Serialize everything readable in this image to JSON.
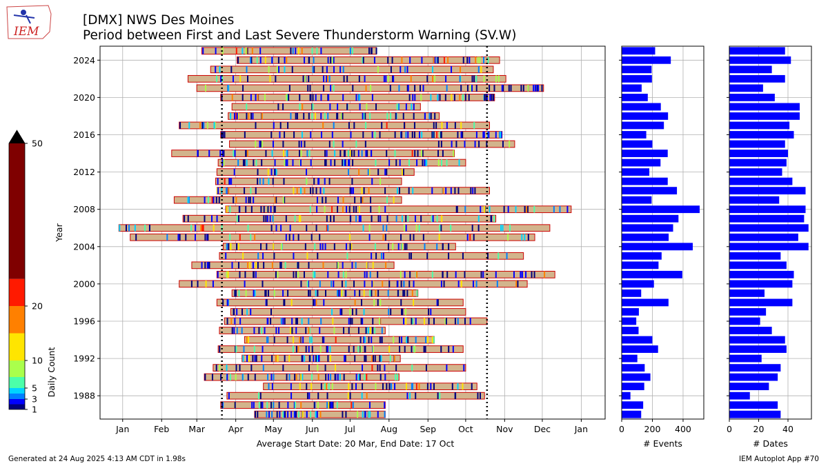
{
  "header": {
    "logo_text": "IEM",
    "title_line1": "[DMX] NWS Des Moines",
    "title_line2": "Period between First and Last Severe Thunderstorm Warning (SV.W)"
  },
  "footer": {
    "generated": "Generated at 24 Aug 2025 4:13 AM CDT in 1.98s",
    "app": "IEM Autoplot App #70"
  },
  "colorbar": {
    "label": "Daily Count",
    "ticks": [
      1,
      3,
      5,
      10,
      20,
      50
    ],
    "bins": [
      {
        "from": 1,
        "to": 2,
        "color": "#00007f"
      },
      {
        "from": 2,
        "to": 3,
        "color": "#0000ff"
      },
      {
        "from": 3,
        "to": 4,
        "color": "#0080ff"
      },
      {
        "from": 4,
        "to": 5,
        "color": "#00d4ff"
      },
      {
        "from": 5,
        "to": 7,
        "color": "#4cffaa"
      },
      {
        "from": 7,
        "to": 10,
        "color": "#aaff4c"
      },
      {
        "from": 10,
        "to": 15,
        "color": "#ffe500"
      },
      {
        "from": 15,
        "to": 20,
        "color": "#ff8000"
      },
      {
        "from": 20,
        "to": 25,
        "color": "#ff1a00"
      },
      {
        "from": 25,
        "to": 50,
        "color": "#7f0000"
      }
    ],
    "extend_color": "#000000"
  },
  "chart_data": [
    {
      "type": "timeline",
      "ylabel": "Year",
      "xlabel": "Average Start Date: 20 Mar, End Date: 17 Oct",
      "x_tick_labels": [
        "Jan",
        "Feb",
        "Mar",
        "Apr",
        "May",
        "Jun",
        "Jul",
        "Aug",
        "Sep",
        "Oct",
        "Nov",
        "Dec",
        "Jan"
      ],
      "y_ticks": [
        1988,
        1992,
        1996,
        2000,
        2004,
        2008,
        2012,
        2016,
        2020,
        2024
      ],
      "avg_start_doy": 79,
      "avg_end_doy": 290,
      "bar_color": "#d2b48c",
      "bar_edge": "#cc0000",
      "grid": true,
      "periods": [
        {
          "year": 1986,
          "start_doy": 105,
          "end_doy": 209
        },
        {
          "year": 1987,
          "start_doy": 78,
          "end_doy": 209
        },
        {
          "year": 1988,
          "start_doy": 83,
          "end_doy": 288
        },
        {
          "year": 1989,
          "start_doy": 112,
          "end_doy": 282
        },
        {
          "year": 1990,
          "start_doy": 65,
          "end_doy": 220
        },
        {
          "year": 1991,
          "start_doy": 72,
          "end_doy": 273
        },
        {
          "year": 1992,
          "start_doy": 95,
          "end_doy": 221
        },
        {
          "year": 1993,
          "start_doy": 76,
          "end_doy": 271
        },
        {
          "year": 1994,
          "start_doy": 97,
          "end_doy": 248
        },
        {
          "year": 1995,
          "start_doy": 77,
          "end_doy": 209
        },
        {
          "year": 1996,
          "start_doy": 81,
          "end_doy": 290
        },
        {
          "year": 1997,
          "start_doy": 86,
          "end_doy": 273
        },
        {
          "year": 1998,
          "start_doy": 75,
          "end_doy": 271
        },
        {
          "year": 1999,
          "start_doy": 87,
          "end_doy": 235
        },
        {
          "year": 2000,
          "start_doy": 45,
          "end_doy": 322
        },
        {
          "year": 2001,
          "start_doy": 75,
          "end_doy": 344
        },
        {
          "year": 2002,
          "start_doy": 55,
          "end_doy": 216
        },
        {
          "year": 2003,
          "start_doy": 77,
          "end_doy": 319
        },
        {
          "year": 2004,
          "start_doy": 80,
          "end_doy": 265
        },
        {
          "year": 2005,
          "start_doy": 6,
          "end_doy": 328
        },
        {
          "year": 2006,
          "start_doy": -3,
          "end_doy": 340
        },
        {
          "year": 2007,
          "start_doy": 48,
          "end_doy": 297
        },
        {
          "year": 2008,
          "start_doy": 82,
          "end_doy": 357
        },
        {
          "year": 2009,
          "start_doy": 41,
          "end_doy": 222
        },
        {
          "year": 2010,
          "start_doy": 75,
          "end_doy": 292
        },
        {
          "year": 2011,
          "start_doy": 74,
          "end_doy": 222
        },
        {
          "year": 2012,
          "start_doy": 75,
          "end_doy": 232
        },
        {
          "year": 2013,
          "start_doy": 76,
          "end_doy": 273
        },
        {
          "year": 2014,
          "start_doy": 39,
          "end_doy": 264
        },
        {
          "year": 2015,
          "start_doy": 85,
          "end_doy": 312
        },
        {
          "year": 2016,
          "start_doy": 78,
          "end_doy": 302
        },
        {
          "year": 2017,
          "start_doy": 45,
          "end_doy": 292
        },
        {
          "year": 2018,
          "start_doy": 84,
          "end_doy": 252
        },
        {
          "year": 2019,
          "start_doy": 87,
          "end_doy": 237
        },
        {
          "year": 2020,
          "start_doy": 78,
          "end_doy": 296
        },
        {
          "year": 2021,
          "start_doy": 59,
          "end_doy": 335
        },
        {
          "year": 2022,
          "start_doy": 52,
          "end_doy": 305
        },
        {
          "year": 2023,
          "start_doy": 70,
          "end_doy": 295
        },
        {
          "year": 2024,
          "start_doy": 91,
          "end_doy": 300
        },
        {
          "year": 2025,
          "start_doy": 63,
          "end_doy": 202
        }
      ]
    },
    {
      "type": "bar",
      "orientation": "horizontal",
      "xlabel": "# Events",
      "x_ticks": [
        0,
        200,
        400
      ],
      "xlim": [
        0,
        535
      ],
      "bar_color": "#0000ff",
      "years": [
        1986,
        1987,
        1988,
        1989,
        1990,
        1991,
        1992,
        1993,
        1994,
        1995,
        1996,
        1997,
        1998,
        1999,
        2000,
        2001,
        2002,
        2003,
        2004,
        2005,
        2006,
        2007,
        2008,
        2009,
        2010,
        2011,
        2012,
        2013,
        2014,
        2015,
        2016,
        2017,
        2018,
        2019,
        2020,
        2021,
        2022,
        2023,
        2024,
        2025
      ],
      "values": [
        127,
        140,
        57,
        147,
        187,
        150,
        102,
        237,
        200,
        110,
        95,
        112,
        305,
        127,
        210,
        395,
        240,
        260,
        463,
        306,
        335,
        370,
        508,
        195,
        360,
        300,
        180,
        253,
        300,
        200,
        160,
        275,
        302,
        255,
        170,
        130,
        197,
        195,
        320,
        218
      ]
    },
    {
      "type": "bar",
      "orientation": "horizontal",
      "xlabel": "# Dates",
      "x_ticks": [
        0,
        20,
        40
      ],
      "xlim": [
        0,
        56
      ],
      "bar_color": "#0000ff",
      "years": [
        1986,
        1987,
        1988,
        1989,
        1990,
        1991,
        1992,
        1993,
        1994,
        1995,
        1996,
        1997,
        1998,
        1999,
        2000,
        2001,
        2002,
        2003,
        2004,
        2005,
        2006,
        2007,
        2008,
        2009,
        2010,
        2011,
        2012,
        2013,
        2014,
        2015,
        2016,
        2017,
        2018,
        2019,
        2020,
        2021,
        2022,
        2023,
        2024,
        2025
      ],
      "values": [
        35,
        33,
        14,
        27,
        33,
        35,
        22,
        39,
        38,
        29,
        21,
        25,
        43,
        24,
        43,
        44,
        39,
        35,
        54,
        47,
        54,
        51,
        52,
        34,
        52,
        43,
        36,
        39,
        40,
        38,
        44,
        41,
        48,
        48,
        31,
        23,
        38,
        29,
        42,
        38
      ]
    }
  ]
}
